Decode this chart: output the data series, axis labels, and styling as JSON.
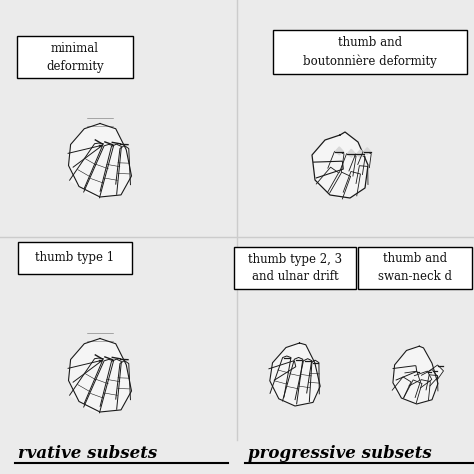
{
  "background_color": "#ebebeb",
  "divider_color": "#cccccc",
  "box_bg": "#ffffff",
  "box_edge": "#000000",
  "text_color": "#111111",
  "bold_color": "#000000",
  "top_left_label": "minimal\ndeformity",
  "top_right_label": "thumb and\nboutonnière deformity",
  "mid_left_label": "thumb type 1",
  "mid_center_label": "thumb type 2, 3\nand ulnar drift",
  "mid_right_label": "thumb and\nswan-neck d",
  "bottom_left_footer": "rvative subsets",
  "bottom_right_footer": "progressive subsets",
  "font_size_labels": 8.5,
  "font_size_footer": 12,
  "fig_width": 4.74,
  "fig_height": 4.74,
  "hand_color": "#f5f5f5",
  "hand_edge": "#1a1a1a",
  "hand_shade": "#d8d8d8"
}
